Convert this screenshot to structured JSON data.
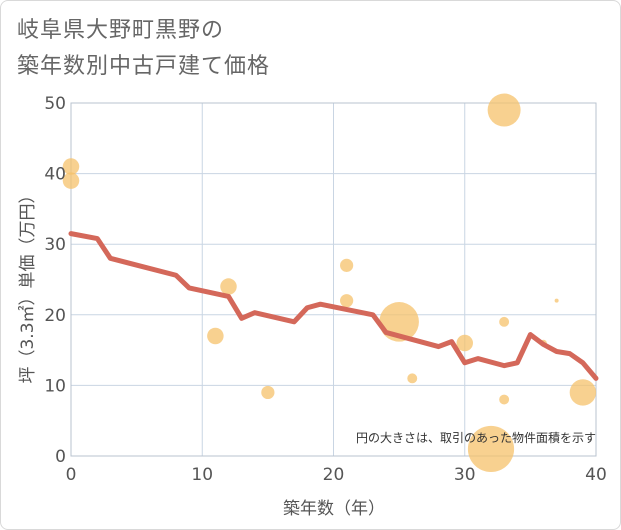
{
  "chart_data": {
    "type": "scatter",
    "title_lines": [
      "岐阜県大野町黒野の",
      "築年数別中古戸建て価格"
    ],
    "xlabel": "築年数（年）",
    "ylabel": "坪（3.3㎡）単価（万円）",
    "xlim": [
      0,
      40
    ],
    "ylim": [
      0,
      50
    ],
    "xticks": [
      0,
      10,
      20,
      30,
      40
    ],
    "yticks": [
      0,
      10,
      20,
      30,
      40,
      50
    ],
    "grid": true,
    "annotation": "円の大きさは、取引のあった物件面積を示す",
    "colors": {
      "bubble": "#f5c26b",
      "trend": "#d4685a",
      "grid": "#c9d5e3",
      "plot_border": "#b9c3cf"
    },
    "bubbles": [
      {
        "x": 0,
        "y": 41,
        "size": 2.5
      },
      {
        "x": 0,
        "y": 39,
        "size": 2.5
      },
      {
        "x": 11,
        "y": 17,
        "size": 2.5
      },
      {
        "x": 12,
        "y": 24,
        "size": 2.5
      },
      {
        "x": 15,
        "y": 9,
        "size": 2
      },
      {
        "x": 21,
        "y": 27,
        "size": 2
      },
      {
        "x": 21,
        "y": 22,
        "size": 2
      },
      {
        "x": 25,
        "y": 19,
        "size": 6
      },
      {
        "x": 26,
        "y": 11,
        "size": 1.5
      },
      {
        "x": 30,
        "y": 16,
        "size": 2.5
      },
      {
        "x": 32,
        "y": 1,
        "size": 7
      },
      {
        "x": 33,
        "y": 49,
        "size": 5
      },
      {
        "x": 33,
        "y": 19,
        "size": 1.5
      },
      {
        "x": 33,
        "y": 8,
        "size": 1.5
      },
      {
        "x": 36,
        "y": 16,
        "size": 1
      },
      {
        "x": 37,
        "y": 22,
        "size": 0.3
      },
      {
        "x": 39,
        "y": 9,
        "size": 4
      }
    ],
    "trend_line": {
      "x": [
        0,
        2,
        3,
        8,
        9,
        12,
        13,
        14,
        17,
        18,
        19,
        23,
        24,
        28,
        29,
        30,
        31,
        33,
        34,
        35,
        36,
        37,
        38,
        39,
        40
      ],
      "y": [
        31.5,
        30.8,
        28,
        25.6,
        23.8,
        22.6,
        19.5,
        20.3,
        19,
        21,
        21.5,
        20,
        17.5,
        15.5,
        16.2,
        13.2,
        13.8,
        12.8,
        13.2,
        17.2,
        15.8,
        14.8,
        14.5,
        13.2,
        11
      ]
    }
  }
}
